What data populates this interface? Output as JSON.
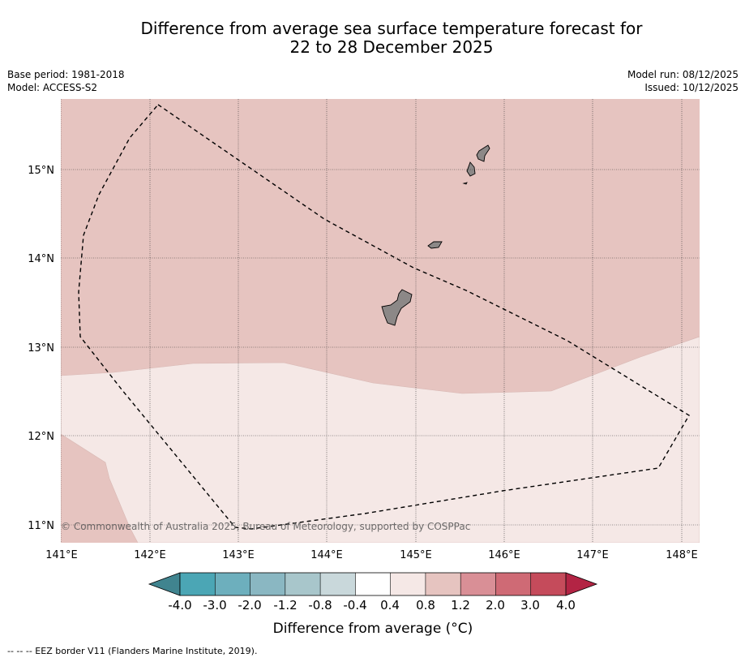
{
  "title": {
    "line1": "Difference from average sea surface temperature forecast for",
    "line2": "22 to 28 December 2025"
  },
  "info_left": {
    "base_period": "Base period: 1981-2018",
    "model": "Model: ACCESS-S2"
  },
  "info_right": {
    "model_run": "Model run: 08/12/2025",
    "issued": "Issued: 10/12/2025"
  },
  "map": {
    "lon_range": [
      141.0,
      148.2
    ],
    "lat_range": [
      10.8,
      15.8
    ],
    "lat_ticks": [
      "15°N",
      "14°N",
      "13°N",
      "12°N",
      "11°N"
    ],
    "lon_ticks": [
      "141°E",
      "142°E",
      "143°E",
      "144°E",
      "145°E",
      "146°E",
      "147°E",
      "148°E"
    ],
    "colors": {
      "anom_08_12": "#e6c4c0",
      "anom_04_08": "#f5e8e6",
      "land": "#8c8887"
    },
    "copyright": "© Commonwealth of Australia 2025, Bureau of Meteorology, supported by COSPPac"
  },
  "colorbar": {
    "labels": [
      "-4.0",
      "-3.0",
      "-2.0",
      "-1.2",
      "-0.8",
      "-0.4",
      "0.4",
      "0.8",
      "1.2",
      "2.0",
      "3.0",
      "4.0"
    ],
    "colors": [
      "#4ba6b5",
      "#6dafbd",
      "#8ab7c2",
      "#a8c6cb",
      "#c9d8db",
      "#ffffff",
      "#f5e8e6",
      "#e6c4c0",
      "#d98f96",
      "#cf6a75",
      "#c54b5b"
    ],
    "under_color": "#40848f",
    "over_color": "#b32444",
    "label": "Difference from average (°C)"
  },
  "footnote": "-- -- -- EEZ border V11 (Flanders Marine Institute, 2019)."
}
